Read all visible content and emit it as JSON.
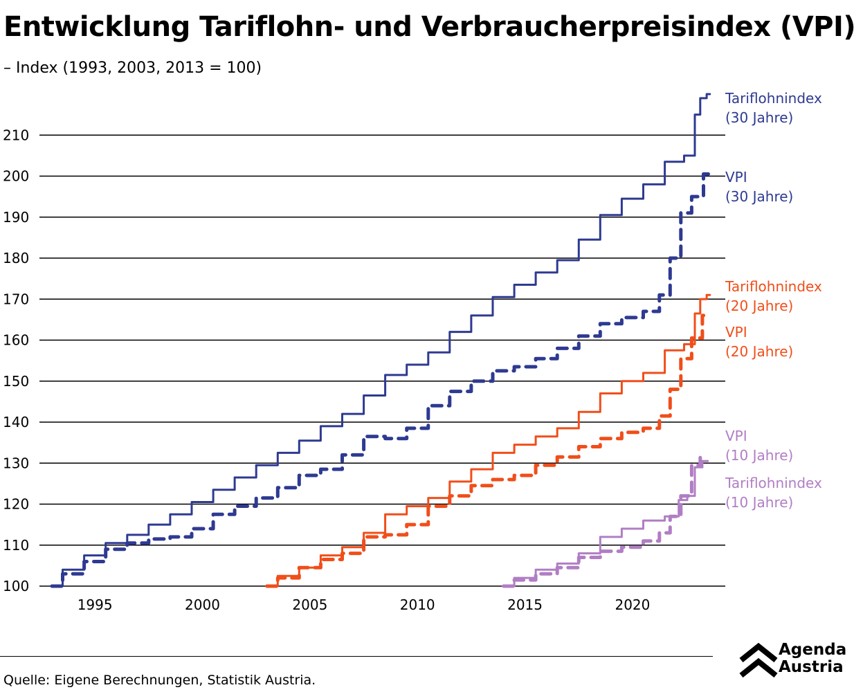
{
  "title": "Entwicklung Tariflohn- und Verbraucherpreisindex (VPI)",
  "subtitle": "– Index (1993, 2003, 2013 = 100)",
  "source": "Quelle: Eigene Berechnungen, Statistik Austria.",
  "logo": {
    "line1": "Agenda",
    "line2": "Austria"
  },
  "colors": {
    "c30": "#2e3a91",
    "c20": "#f04e1a",
    "c10": "#b07ec4",
    "grid": "#000000"
  },
  "chart_data": {
    "type": "line",
    "title": "Entwicklung Tariflohn- und Verbraucherpreisindex (VPI)",
    "ylabel": "",
    "xlabel": "",
    "xlim": [
      1993,
      2023.8
    ],
    "ylim": [
      100,
      220
    ],
    "yticks": [
      100,
      110,
      120,
      130,
      140,
      150,
      160,
      170,
      180,
      190,
      200,
      210
    ],
    "xticks": [
      1995,
      2000,
      2005,
      2010,
      2015,
      2020
    ],
    "grid": true,
    "series": [
      {
        "name": "Tariflohnindex (30 Jahre)",
        "label_lines": [
          "Tariflohnindex",
          "(30 Jahre)"
        ],
        "color": "#2e3a91",
        "dash": false,
        "x": [
          1993,
          1994,
          1995,
          1996,
          1997,
          1998,
          1999,
          2000,
          2001,
          2002,
          2003,
          2004,
          2005,
          2006,
          2007,
          2008,
          2009,
          2010,
          2011,
          2012,
          2013,
          2014,
          2015,
          2016,
          2017,
          2018,
          2019,
          2020,
          2021,
          2022,
          2022.8,
          2023,
          2023.3,
          2023.6
        ],
        "y": [
          100,
          104,
          107.5,
          110.5,
          112.5,
          115,
          117.5,
          120.5,
          123.5,
          126.5,
          129.5,
          132.5,
          135.5,
          139,
          142,
          146.5,
          151.5,
          154,
          157,
          162,
          166,
          170.5,
          173.5,
          176.5,
          179.5,
          184.5,
          190.5,
          194.5,
          198,
          203.5,
          205,
          215,
          219,
          220
        ]
      },
      {
        "name": "VPI (30 Jahre)",
        "label_lines": [
          "VPI",
          "(30 Jahre)"
        ],
        "color": "#2e3a91",
        "dash": true,
        "x": [
          1993,
          1994,
          1995,
          1996,
          1997,
          1998,
          1999,
          2000,
          2001,
          2002,
          2003,
          2004,
          2005,
          2006,
          2007,
          2008,
          2009,
          2010,
          2011,
          2012,
          2013,
          2014,
          2015,
          2016,
          2017,
          2018,
          2019,
          2020,
          2021,
          2021.5,
          2022,
          2022.5,
          2023,
          2023.6
        ],
        "y": [
          100,
          103,
          106,
          109,
          110.5,
          111.5,
          112,
          114,
          117.5,
          119.5,
          121.5,
          124,
          127,
          128.5,
          132,
          136.5,
          136,
          138.5,
          144,
          147.5,
          150,
          152.5,
          153.5,
          155.5,
          158,
          161,
          164,
          165.5,
          167,
          171,
          180,
          191,
          195,
          200.5
        ]
      },
      {
        "name": "Tariflohnindex (20 Jahre)",
        "label_lines": [
          "Tariflohnindex",
          "(20 Jahre)"
        ],
        "color": "#f04e1a",
        "dash": false,
        "x": [
          2003,
          2004,
          2005,
          2006,
          2007,
          2008,
          2009,
          2010,
          2011,
          2012,
          2013,
          2014,
          2015,
          2016,
          2017,
          2018,
          2019,
          2020,
          2021,
          2022,
          2022.8,
          2023,
          2023.3,
          2023.6
        ],
        "y": [
          100,
          102.5,
          104.5,
          107.5,
          109.5,
          113,
          117.5,
          119.5,
          121.5,
          125.5,
          128.5,
          132.5,
          134.5,
          136.5,
          138.5,
          142.5,
          147,
          150,
          152,
          157.5,
          159,
          166.5,
          170,
          171
        ]
      },
      {
        "name": "VPI (20 Jahre)",
        "label_lines": [
          "VPI",
          "(20 Jahre)"
        ],
        "color": "#f04e1a",
        "dash": true,
        "x": [
          2003,
          2004,
          2005,
          2006,
          2007,
          2008,
          2009,
          2010,
          2011,
          2012,
          2013,
          2014,
          2015,
          2016,
          2017,
          2018,
          2019,
          2020,
          2021,
          2021.5,
          2022,
          2022.5,
          2023,
          2023.5
        ],
        "y": [
          100,
          102,
          104.5,
          106.5,
          108,
          112,
          112.5,
          115,
          119.5,
          122,
          124.5,
          126,
          127,
          129.5,
          131.5,
          134,
          136,
          137.5,
          138.5,
          141.5,
          148,
          155.5,
          160.5,
          166
        ]
      },
      {
        "name": "VPI (10 Jahre)",
        "label_lines": [
          "VPI",
          "(10 Jahre)"
        ],
        "color": "#b07ec4",
        "dash": true,
        "x": [
          2014,
          2015,
          2016,
          2017,
          2018,
          2019,
          2020,
          2021,
          2021.5,
          2022,
          2022.5,
          2023,
          2023.3
        ],
        "y": [
          100,
          101.5,
          103,
          104.5,
          107,
          108.5,
          109.5,
          111,
          113,
          117,
          122,
          129.5,
          132
        ]
      },
      {
        "name": "Tariflohnindex (10 Jahre)",
        "label_lines": [
          "Tariflohnindex",
          "(10 Jahre)"
        ],
        "color": "#b07ec4",
        "dash": false,
        "x": [
          2014,
          2015,
          2016,
          2017,
          2018,
          2019,
          2020,
          2021,
          2022,
          2022.3,
          2022.8,
          2023,
          2023.5
        ],
        "y": [
          100,
          102,
          104,
          105.5,
          108,
          112,
          114,
          116,
          117,
          121,
          122,
          129,
          130.5
        ]
      }
    ]
  }
}
